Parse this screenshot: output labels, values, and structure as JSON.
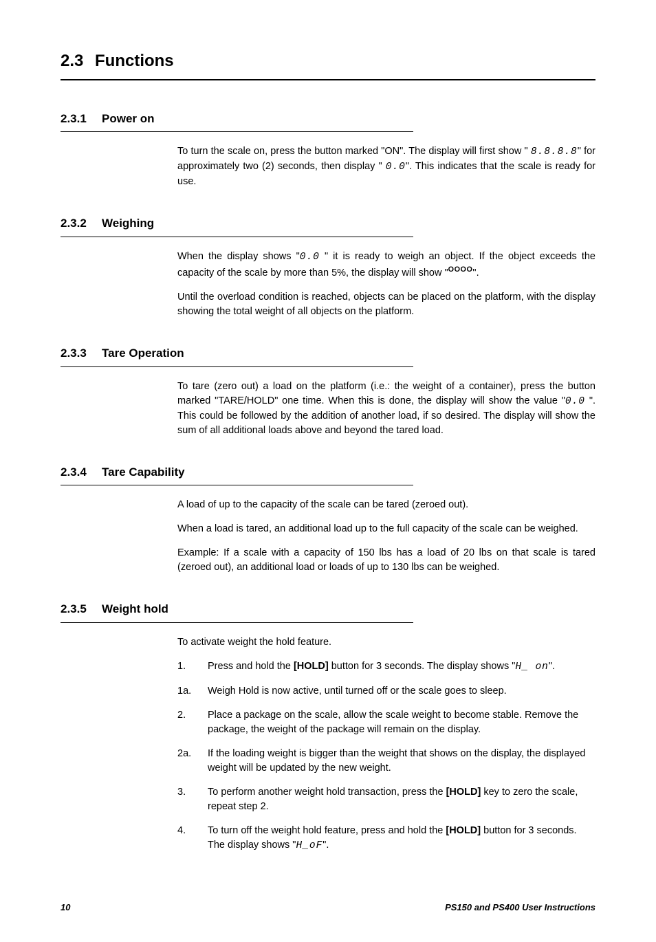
{
  "h1": {
    "num": "2.3",
    "title": "Functions"
  },
  "sections": {
    "s1": {
      "num": "2.3.1",
      "title": "Power on",
      "p1a": "To turn the scale on, press the button marked \"ON\". The display will first show \" ",
      "seg1": "8.8.8.8",
      "p1b": "\" for approximately two (2) seconds, then display \" ",
      "seg2": "0.0",
      "p1c": "\". This indicates that the scale is ready for use."
    },
    "s2": {
      "num": "2.3.2",
      "title": "Weighing",
      "p1a": "When the display shows \"",
      "seg1": "0.0",
      "p1b": " \" it is ready to weigh an object. If the object exceeds the capacity of the scale by more than 5%, the display will show \"",
      "sup": "OOOO",
      "p1c": "\".",
      "p2": "Until the overload condition is reached, objects can be placed on the platform, with the display showing the total weight of all objects on the platform."
    },
    "s3": {
      "num": "2.3.3",
      "title": "Tare Operation",
      "p1a": "To tare (zero out) a load on the platform (i.e.: the weight of a container), press the button marked \"TARE/HOLD\" one time. When this is done, the display will show the value \"",
      "seg1": "0.0",
      "p1b": " \". This could be followed by the addition of another load, if so desired. The display will show the sum of all additional loads above and beyond the tared load."
    },
    "s4": {
      "num": "2.3.4",
      "title": "Tare Capability",
      "p1": "A load of up to the capacity of the scale can be tared (zeroed out).",
      "p2": "When a load is tared, an additional load up to the full capacity of the scale can be weighed.",
      "p3": "Example: If a scale with a capacity of 150 lbs has a load of 20 lbs on that scale is tared (zeroed out), an additional load or loads of up to 130 lbs can be weighed."
    },
    "s5": {
      "num": "2.3.5",
      "title": "Weight hold",
      "intro": "To activate weight the hold feature.",
      "steps": {
        "n1": "1.",
        "t1a": "Press and hold the ",
        "t1hold": "[HOLD]",
        "t1b": " button for 3 seconds. The display shows \"",
        "t1seg": "H_ on",
        "t1c": "\".",
        "n1a": "1a.",
        "t1a_txt": "Weigh Hold is now active, until turned off or the scale goes to sleep.",
        "n2": "2.",
        "t2": "Place a package on the scale, allow the scale weight to become stable. Remove the package, the weight of the package will remain on the display.",
        "n2a": "2a.",
        "t2a": "If the loading weight is bigger than the weight that shows on the display, the displayed weight will be updated by the new weight.",
        "n3": "3.",
        "t3a": "To perform another weight hold transaction, press the ",
        "t3hold": "[HOLD]",
        "t3b": " key to zero the scale, repeat step 2.",
        "n4": "4.",
        "t4a": "To turn off the weight hold feature, press and hold the ",
        "t4hold": "[HOLD]",
        "t4b": " button for 3 seconds. The display shows \"",
        "t4seg": "H_oF",
        "t4c": "\"."
      }
    }
  },
  "footer": {
    "page": "10",
    "doc": "PS150 and PS400 User Instructions"
  }
}
